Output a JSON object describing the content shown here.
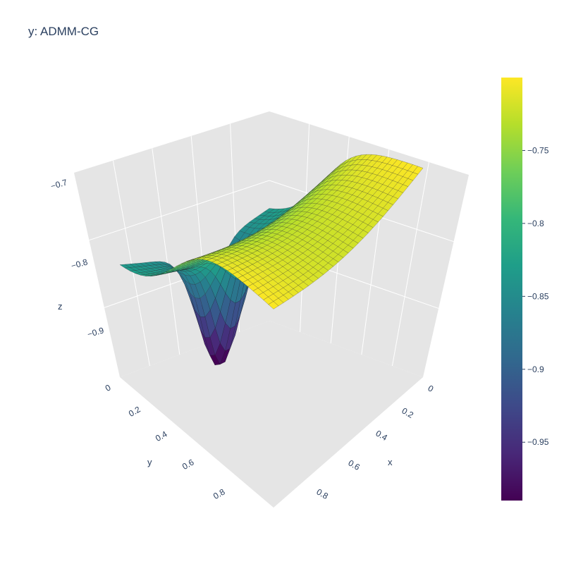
{
  "chart_data": {
    "type": "surface",
    "title": "y: ADMM-CG",
    "colorscale": "Viridis",
    "colors": [
      "#440154",
      "#482878",
      "#3e4989",
      "#31688e",
      "#26828e",
      "#1f9e89",
      "#35b779",
      "#6ece58",
      "#b5de2b",
      "#fde725"
    ],
    "axes": {
      "x": {
        "title": "x",
        "range": [
          0,
          1
        ],
        "ticks": [
          "0",
          "0.2",
          "0.4",
          "0.6",
          "0.8"
        ]
      },
      "y": {
        "title": "y",
        "range": [
          0,
          1
        ],
        "ticks": [
          "0",
          "0.2",
          "0.4",
          "0.6",
          "0.8"
        ]
      },
      "z": {
        "title": "z",
        "range": [
          -0.99,
          -0.7
        ],
        "ticks": [
          "−0.9",
          "−0.8",
          "−0.7"
        ]
      }
    },
    "surface": {
      "baseline": -0.7,
      "well": {
        "x": 0.12,
        "y": 0.45,
        "depth": -0.99,
        "width": 0.3
      },
      "min": -0.99,
      "max": -0.7
    },
    "colorbar": {
      "range": [
        -0.99,
        -0.7
      ],
      "ticks": [
        "−0.75",
        "−0.8",
        "−0.85",
        "−0.9",
        "−0.95"
      ],
      "tickvals": [
        -0.75,
        -0.8,
        -0.85,
        -0.9,
        -0.95
      ]
    }
  }
}
